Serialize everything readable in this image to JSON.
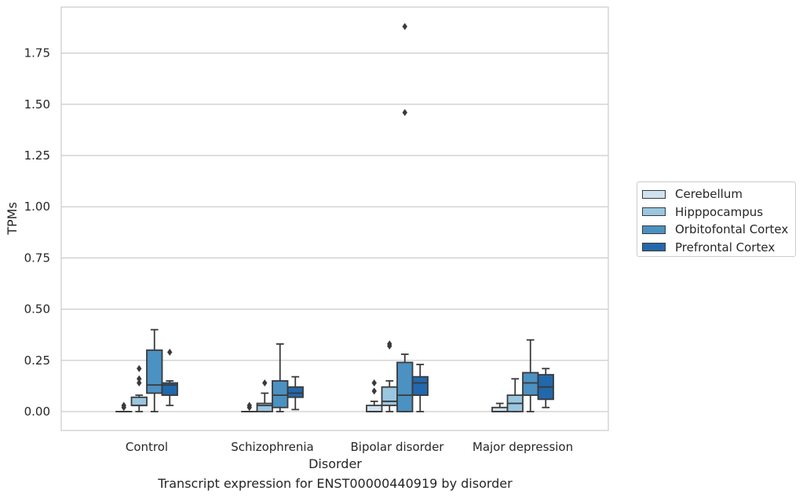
{
  "caption": "Transcript expression for ENST00000440919 by disorder",
  "colors": {
    "Cerebellum": "#d0e2f1",
    "Hipppocampus": "#9bc6e0",
    "Orbitofontal Cortex": "#4b91c2",
    "Prefrontal Cortex": "#2268ac",
    "line": "#3a3a3a",
    "grid": "#cccccc"
  },
  "chart_data": {
    "type": "box",
    "title": "",
    "xlabel": "Disorder",
    "ylabel": "TPMs",
    "ylim": [
      -0.09,
      1.97
    ],
    "yticks": [
      0.0,
      0.25,
      0.5,
      0.75,
      1.0,
      1.25,
      1.5,
      1.75
    ],
    "ytick_labels": [
      "0.00",
      "0.25",
      "0.50",
      "0.75",
      "1.00",
      "1.25",
      "1.50",
      "1.75"
    ],
    "grid": "horizontal",
    "legend_position": "right",
    "categories": [
      "Control",
      "Schizophrenia",
      "Bipolar disorder",
      "Major depression"
    ],
    "series": [
      {
        "name": "Cerebellum",
        "boxes": [
          {
            "min": 0.0,
            "q1": 0.0,
            "median": 0.0,
            "q3": 0.0,
            "max": 0.0,
            "outliers": [
              0.02,
              0.03
            ]
          },
          {
            "min": 0.0,
            "q1": 0.0,
            "median": 0.0,
            "q3": 0.0,
            "max": 0.0,
            "outliers": [
              0.02,
              0.03
            ]
          },
          {
            "min": 0.0,
            "q1": 0.0,
            "median": 0.0,
            "q3": 0.03,
            "max": 0.05,
            "outliers": [
              0.1,
              0.14
            ]
          },
          {
            "min": 0.0,
            "q1": 0.0,
            "median": 0.0,
            "q3": 0.02,
            "max": 0.04,
            "outliers": []
          }
        ]
      },
      {
        "name": "Hipppocampus",
        "boxes": [
          {
            "min": 0.0,
            "q1": 0.03,
            "median": 0.03,
            "q3": 0.07,
            "max": 0.08,
            "outliers": [
              0.14,
              0.16,
              0.21
            ]
          },
          {
            "min": 0.0,
            "q1": 0.0,
            "median": 0.03,
            "q3": 0.04,
            "max": 0.09,
            "outliers": [
              0.14
            ]
          },
          {
            "min": 0.0,
            "q1": 0.03,
            "median": 0.05,
            "q3": 0.12,
            "max": 0.15,
            "outliers": [
              0.32,
              0.33
            ]
          },
          {
            "min": 0.0,
            "q1": 0.0,
            "median": 0.04,
            "q3": 0.08,
            "max": 0.16,
            "outliers": []
          }
        ]
      },
      {
        "name": "Orbitofontal Cortex",
        "boxes": [
          {
            "min": 0.0,
            "q1": 0.09,
            "median": 0.13,
            "q3": 0.3,
            "max": 0.4,
            "outliers": []
          },
          {
            "min": 0.0,
            "q1": 0.02,
            "median": 0.08,
            "q3": 0.15,
            "max": 0.33,
            "outliers": []
          },
          {
            "min": 0.0,
            "q1": 0.0,
            "median": 0.08,
            "q3": 0.24,
            "max": 0.28,
            "outliers": [
              1.46,
              1.88
            ]
          },
          {
            "min": 0.0,
            "q1": 0.08,
            "median": 0.14,
            "q3": 0.19,
            "max": 0.35,
            "outliers": []
          }
        ]
      },
      {
        "name": "Prefrontal Cortex",
        "boxes": [
          {
            "min": 0.03,
            "q1": 0.08,
            "median": 0.13,
            "q3": 0.14,
            "max": 0.15,
            "outliers": [
              0.29
            ]
          },
          {
            "min": 0.01,
            "q1": 0.07,
            "median": 0.09,
            "q3": 0.12,
            "max": 0.17,
            "outliers": []
          },
          {
            "min": 0.0,
            "q1": 0.08,
            "median": 0.14,
            "q3": 0.17,
            "max": 0.23,
            "outliers": []
          },
          {
            "min": 0.02,
            "q1": 0.06,
            "median": 0.12,
            "q3": 0.18,
            "max": 0.21,
            "outliers": []
          }
        ]
      }
    ]
  }
}
